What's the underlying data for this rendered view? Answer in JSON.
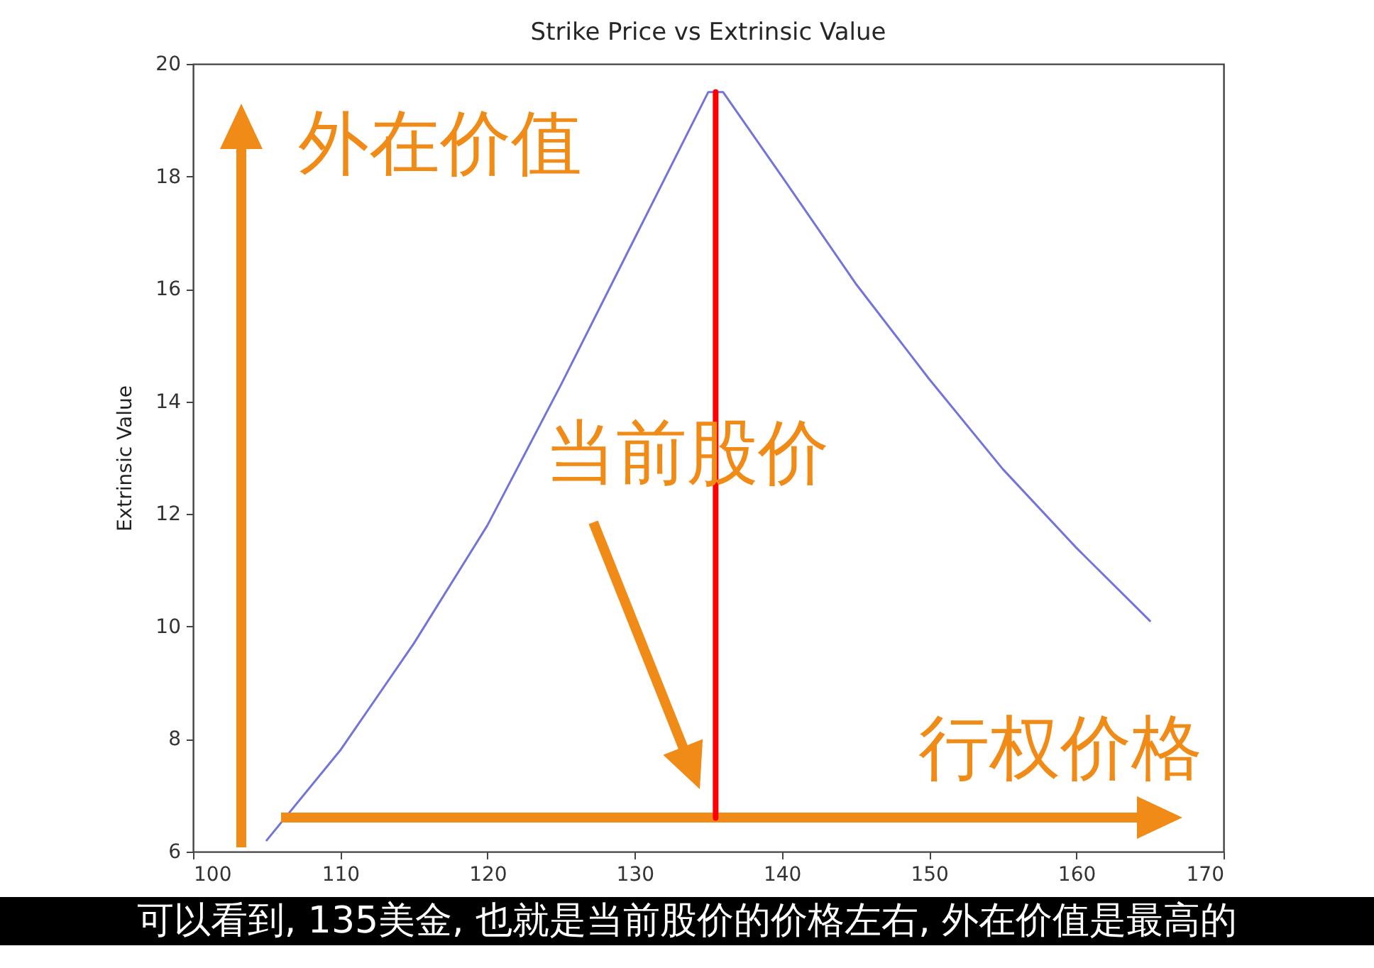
{
  "chart_data": {
    "type": "line",
    "title": "Strike Price vs Extrinsic Value",
    "ylabel": "Extrinsic Value",
    "x": [
      105,
      110,
      115,
      120,
      125,
      130,
      135,
      136,
      140,
      145,
      150,
      155,
      160,
      165
    ],
    "series": [
      {
        "color": "#7474d8",
        "values": [
          6.2,
          7.8,
          9.7,
          11.8,
          14.3,
          16.9,
          19.5,
          19.5,
          18.0,
          16.1,
          14.4,
          12.8,
          11.4,
          10.1
        ]
      },
      {
        "color": "#ff0000",
        "x": [
          135.5,
          135.5
        ],
        "values": [
          6.6,
          19.5
        ]
      }
    ],
    "xlim": [
      100,
      170
    ],
    "ylim": [
      6,
      20
    ],
    "xticks": [
      100,
      110,
      120,
      130,
      140,
      150,
      160,
      170
    ],
    "yticks": [
      6,
      8,
      10,
      12,
      14,
      16,
      18,
      20
    ],
    "annotations": [
      "外在价值",
      "当前股价",
      "行权价格",
      "可以看到, 135美金, 也就是当前股价的价格左右, 外在价值是最高的"
    ]
  }
}
